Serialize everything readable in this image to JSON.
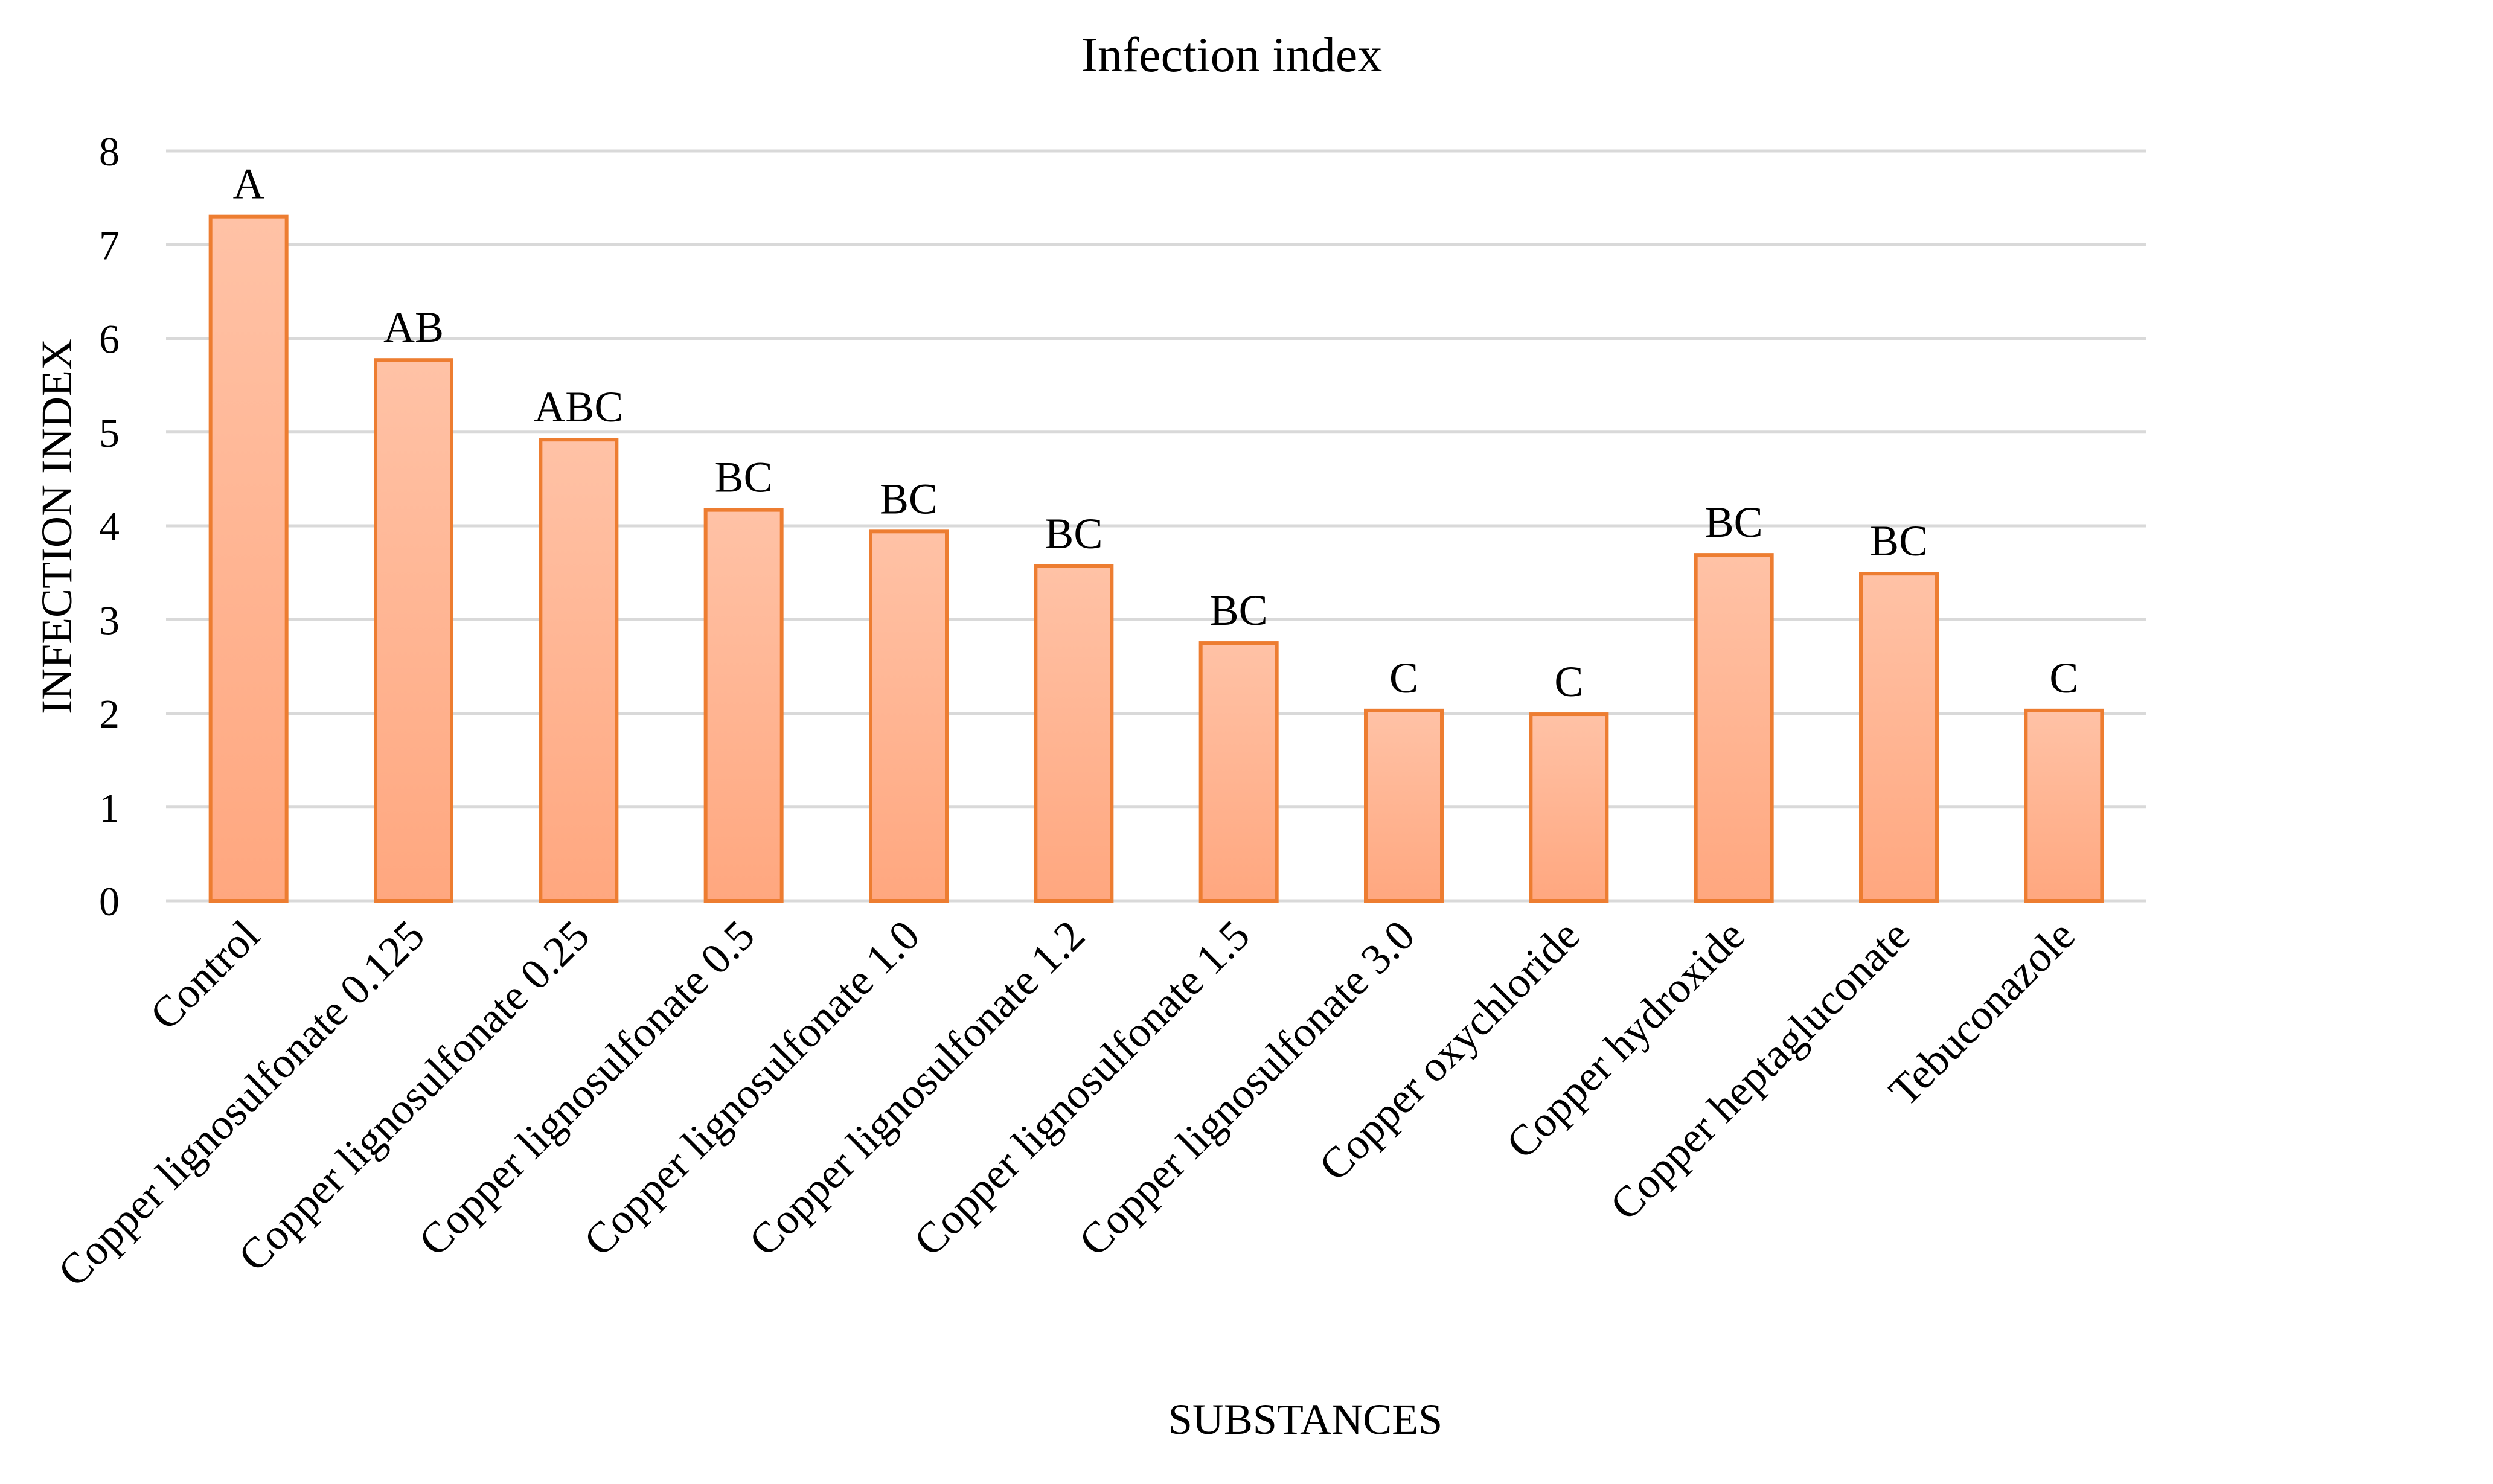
{
  "chart_data": {
    "type": "bar",
    "title": "Infection index",
    "xlabel": "SUBSTANCES",
    "ylabel": "INFECTION INDEX",
    "ylim": [
      0,
      8
    ],
    "yticks": [
      0,
      1,
      2,
      3,
      4,
      5,
      6,
      7,
      8
    ],
    "grid": true,
    "categories": [
      "Control",
      "Copper lignosulfonate 0.125",
      "Copper lignosulfonate 0.25",
      "Copper lignosulfonate 0.5",
      "Copper lignosulfonate 1.0",
      "Copper lignosulfonate 1.2",
      "Copper lignosulfonate 1.5",
      "Copper lignosulfonate 3.0",
      "Copper oxychloride",
      "Copper hydroxide",
      "Copper heptagluconate",
      "Tebuconazole"
    ],
    "values": [
      7.3,
      5.77,
      4.92,
      4.17,
      3.94,
      3.57,
      2.75,
      2.03,
      1.99,
      3.69,
      3.49,
      2.03
    ],
    "annotations": [
      "A",
      "AB",
      "ABC",
      "BC",
      "BC",
      "BC",
      "BC",
      "C",
      "C",
      "BC",
      "BC",
      "C"
    ],
    "colors": {
      "bar_fill_top": "#FFC2A6",
      "bar_fill_bottom": "#FFA77F",
      "bar_stroke": "#ED7D31",
      "grid": "#D9D9D9"
    }
  }
}
